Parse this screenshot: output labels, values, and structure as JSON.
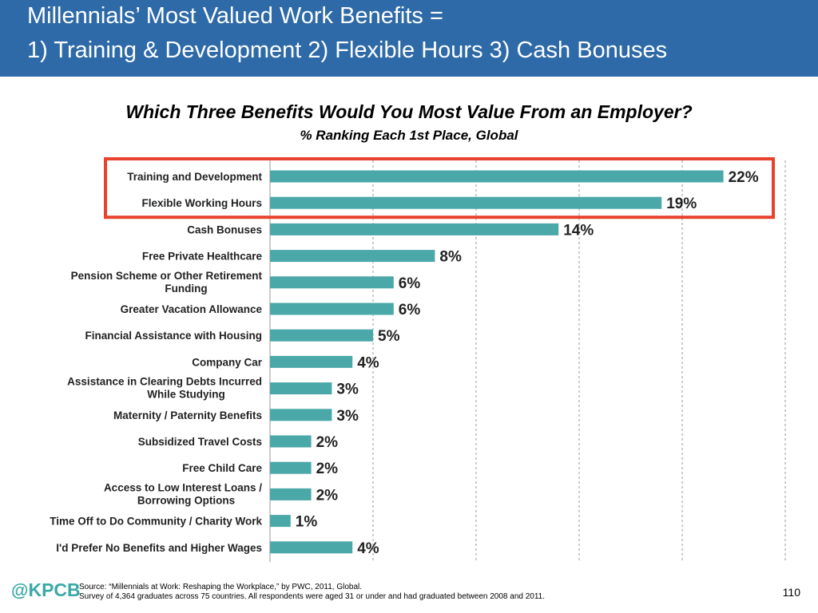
{
  "header": {
    "title_line1": "Millennials’ Most Valued Work Benefits =",
    "title_line2": "1) Training & Development  2) Flexible Hours  3) Cash Bonuses"
  },
  "chart_data": {
    "type": "bar",
    "orientation": "horizontal",
    "title": "Which Three Benefits Would You Most Value From an Employer?",
    "subtitle": "% Ranking Each 1st Place, Global",
    "categories": [
      [
        "Training and Development"
      ],
      [
        "Flexible Working Hours"
      ],
      [
        "Cash Bonuses"
      ],
      [
        "Free Private Healthcare"
      ],
      [
        "Pension Scheme or Other Retirement",
        "Funding"
      ],
      [
        "Greater Vacation Allowance"
      ],
      [
        "Financial Assistance with Housing"
      ],
      [
        "Company Car"
      ],
      [
        "Assistance in Clearing Debts Incurred",
        "While Studying"
      ],
      [
        "Maternity / Paternity Benefits"
      ],
      [
        "Subsidized Travel Costs"
      ],
      [
        "Free Child Care"
      ],
      [
        "Access to Low Interest Loans /",
        "Borrowing Options"
      ],
      [
        "Time Off to Do Community / Charity Work"
      ],
      [
        "I'd Prefer No Benefits and Higher Wages"
      ]
    ],
    "values": [
      22,
      19,
      14,
      8,
      6,
      6,
      5,
      4,
      3,
      3,
      2,
      2,
      2,
      1,
      4
    ],
    "value_labels": [
      "22%",
      "19%",
      "14%",
      "8%",
      "6%",
      "6%",
      "5%",
      "4%",
      "3%",
      "3%",
      "2%",
      "2%",
      "2%",
      "1%",
      "4%"
    ],
    "xlim": [
      0,
      25
    ],
    "gridlines": [
      5,
      10,
      15,
      20,
      25
    ],
    "grid": true,
    "highlighted_categories": [
      0,
      1
    ],
    "bar_color": "#4aa8a8",
    "highlight_color": "#e8412c"
  },
  "footer": {
    "logo_at": "@",
    "logo_text": "KPCB",
    "source_line1": "Source: “Millennials at Work: Reshaping the Workplace,” by PWC, 2011, Global.",
    "source_line2": "Survey of 4,364 graduates across 75 countries. All respondents were aged 31 or under and had graduated between 2008 and 2011.",
    "page_number": "110"
  }
}
